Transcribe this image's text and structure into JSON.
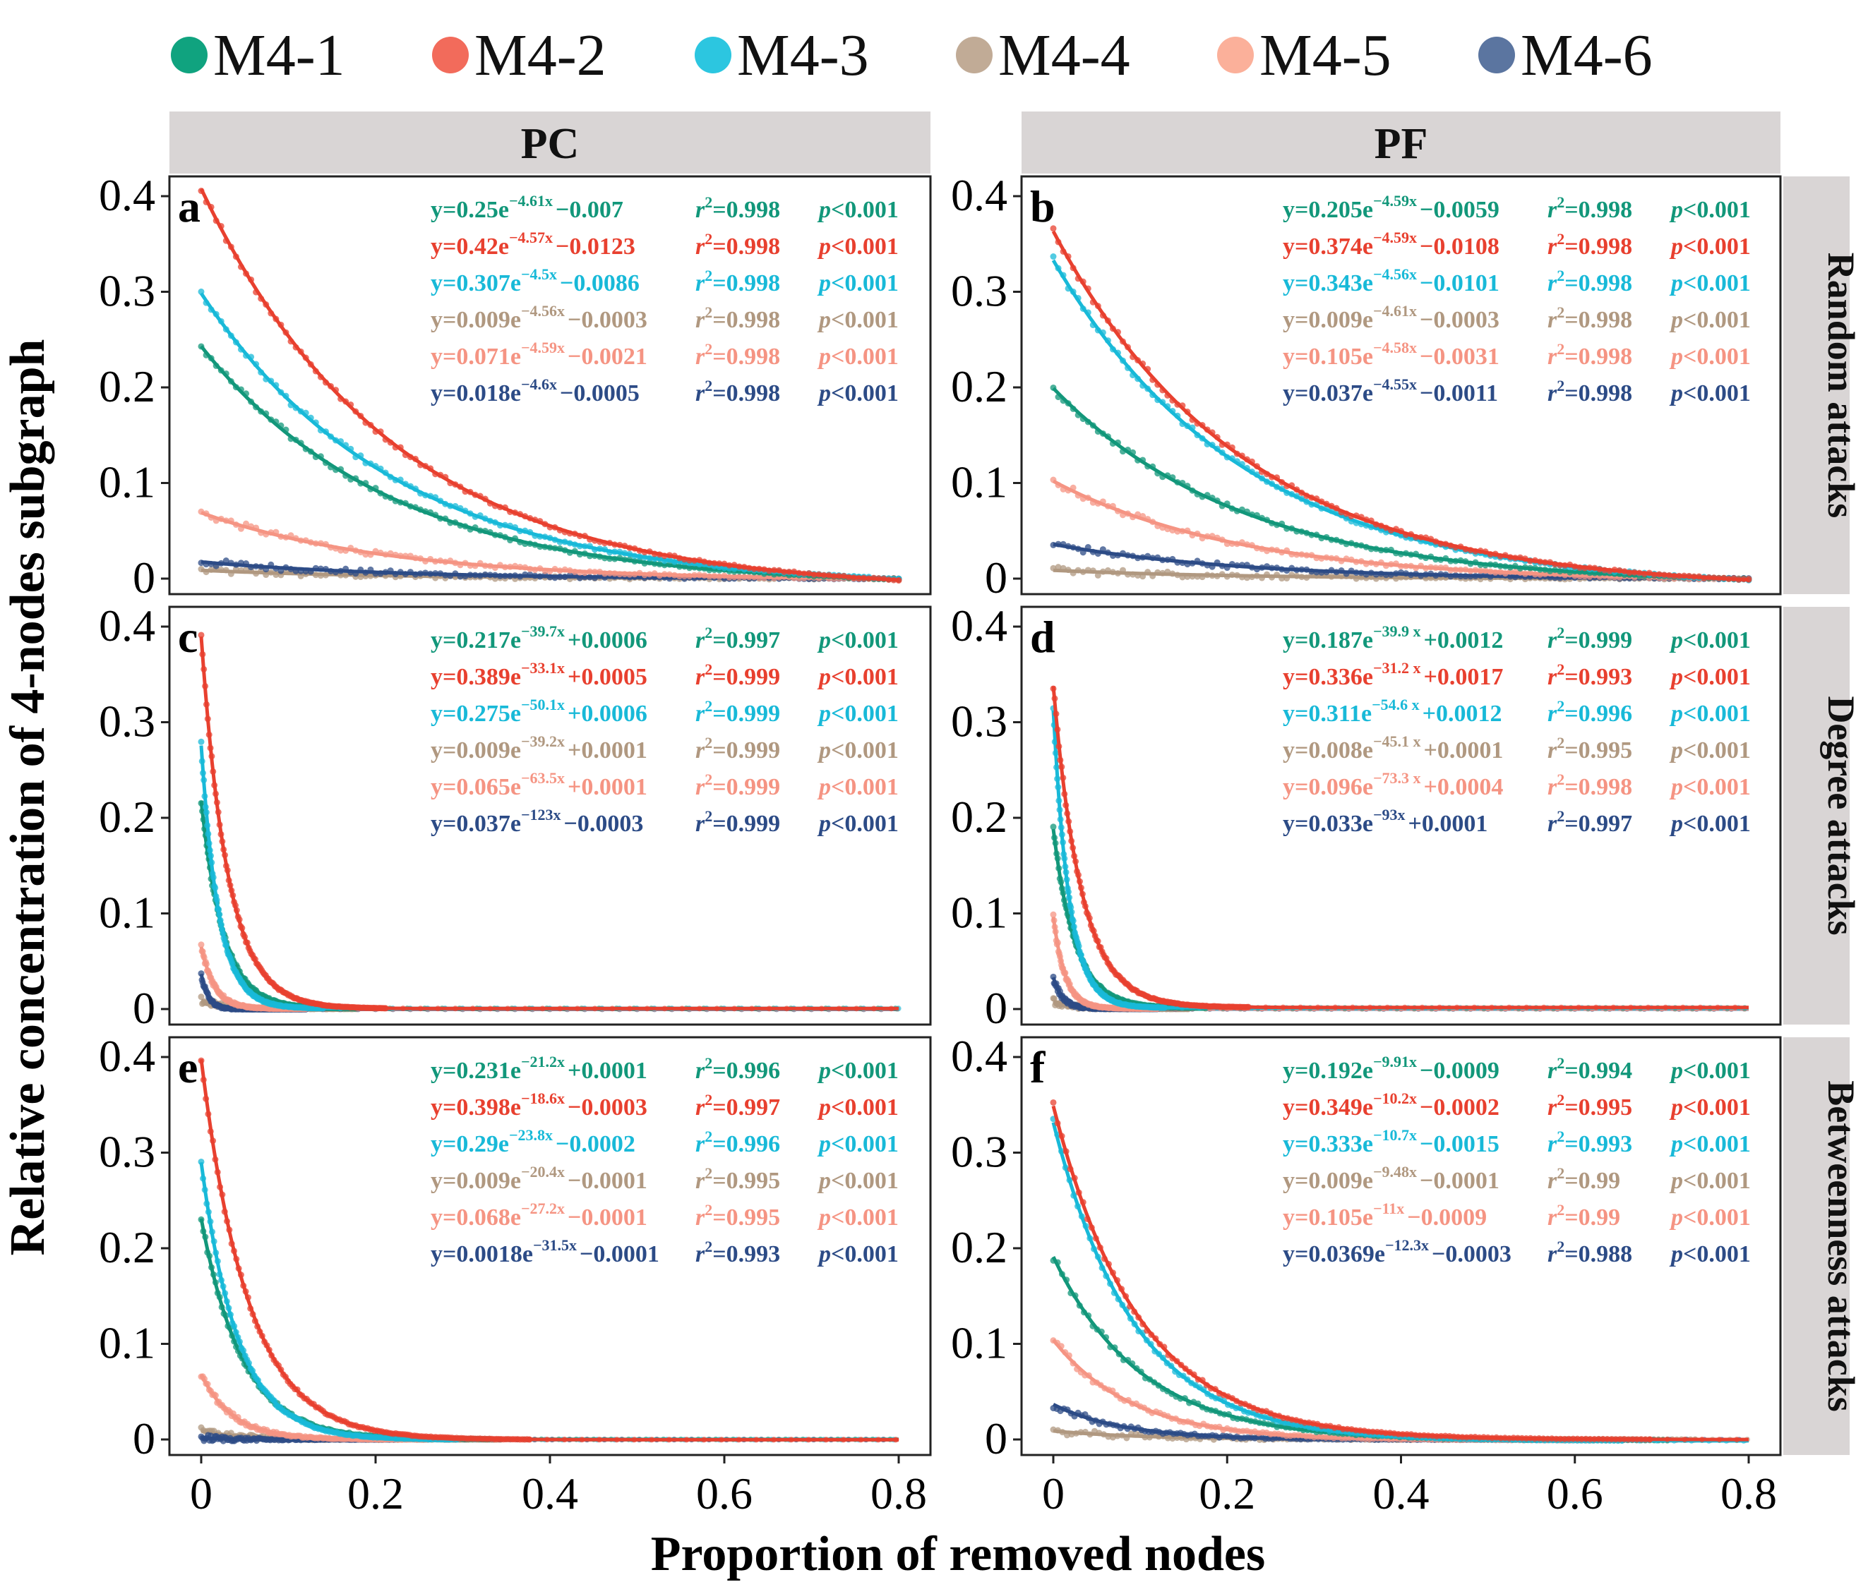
{
  "chart_data": {
    "type": "scatter",
    "ylabel": "Relative concentration of 4-nodes subgraph",
    "xlabel": "Proportion of removed nodes",
    "legend": [
      {
        "name": "M4-1",
        "color": "#10a37f"
      },
      {
        "name": "M4-2",
        "color": "#f26b5b"
      },
      {
        "name": "M4-3",
        "color": "#2cc6e0"
      },
      {
        "name": "M4-4",
        "color": "#c1ab96"
      },
      {
        "name": "M4-5",
        "color": "#fbb09a"
      },
      {
        "name": "M4-6",
        "color": "#5b75a0"
      }
    ],
    "legend_position": "top",
    "series_colors": [
      "#12977a",
      "#e8402f",
      "#18b9d8",
      "#b09880",
      "#f59483",
      "#2c4b86"
    ],
    "column_strips": [
      "PC",
      "PF"
    ],
    "row_strips": [
      "Random attacks",
      "Degree attacks",
      "Betweenness attacks"
    ],
    "xlim": [
      0,
      0.8
    ],
    "ylim": [
      0,
      0.4
    ],
    "x_ticks": [
      "0",
      "0.2",
      "0.4",
      "0.6",
      "0.8"
    ],
    "y_ticks": [
      "0",
      "0.1",
      "0.2",
      "0.3",
      "0.4"
    ],
    "panels": [
      {
        "label": "a",
        "column": "PC",
        "row": "Random attacks",
        "fits": [
          {
            "series": "M4-1",
            "a": 0.25,
            "b": 4.61,
            "c": -0.007,
            "eq_coef": "y=0.25e",
            "eq_exp": "−4.61x",
            "eq_const": "−0.007",
            "r2": "=0.998",
            "p": "<0.001"
          },
          {
            "series": "M4-2",
            "a": 0.42,
            "b": 4.57,
            "c": -0.0123,
            "eq_coef": "y=0.42e",
            "eq_exp": "−4.57x",
            "eq_const": "−0.0123",
            "r2": "=0.998",
            "p": "<0.001"
          },
          {
            "series": "M4-3",
            "a": 0.307,
            "b": 4.5,
            "c": -0.0086,
            "eq_coef": "y=0.307e",
            "eq_exp": "−4.5x",
            "eq_const": "−0.0086",
            "r2": "=0.998",
            "p": "<0.001"
          },
          {
            "series": "M4-4",
            "a": 0.009,
            "b": 4.56,
            "c": -0.0003,
            "eq_coef": "y=0.009e",
            "eq_exp": "−4.56x",
            "eq_const": "−0.0003",
            "r2": "=0.998",
            "p": "<0.001"
          },
          {
            "series": "M4-5",
            "a": 0.071,
            "b": 4.59,
            "c": -0.0021,
            "eq_coef": "y=0.071e",
            "eq_exp": "−4.59x",
            "eq_const": "−0.0021",
            "r2": "=0.998",
            "p": "<0.001"
          },
          {
            "series": "M4-6",
            "a": 0.018,
            "b": 4.6,
            "c": -0.0005,
            "eq_coef": "y=0.018e",
            "eq_exp": "−4.6x",
            "eq_const": "−0.0005",
            "r2": "=0.998",
            "p": "<0.001"
          }
        ]
      },
      {
        "label": "b",
        "column": "PF",
        "row": "Random attacks",
        "fits": [
          {
            "series": "M4-1",
            "a": 0.205,
            "b": 4.59,
            "c": -0.0059,
            "eq_coef": "y=0.205e",
            "eq_exp": "−4.59x",
            "eq_const": "−0.0059",
            "r2": "=0.998",
            "p": "<0.001"
          },
          {
            "series": "M4-2",
            "a": 0.374,
            "b": 4.59,
            "c": -0.0108,
            "eq_coef": "y=0.374e",
            "eq_exp": "−4.59x",
            "eq_const": "−0.0108",
            "r2": "=0.998",
            "p": "<0.001"
          },
          {
            "series": "M4-3",
            "a": 0.343,
            "b": 4.56,
            "c": -0.0101,
            "eq_coef": "y=0.343e",
            "eq_exp": "−4.56x",
            "eq_const": "−0.0101",
            "r2": "=0.998",
            "p": "<0.001"
          },
          {
            "series": "M4-4",
            "a": 0.009,
            "b": 4.61,
            "c": -0.0003,
            "eq_coef": "y=0.009e",
            "eq_exp": "−4.61x",
            "eq_const": "−0.0003",
            "r2": "=0.998",
            "p": "<0.001"
          },
          {
            "series": "M4-5",
            "a": 0.105,
            "b": 4.58,
            "c": -0.0031,
            "eq_coef": "y=0.105e",
            "eq_exp": "−4.58x",
            "eq_const": "−0.0031",
            "r2": "=0.998",
            "p": "<0.001"
          },
          {
            "series": "M4-6",
            "a": 0.037,
            "b": 4.55,
            "c": -0.0011,
            "eq_coef": "y=0.037e",
            "eq_exp": "−4.55x",
            "eq_const": "−0.0011",
            "r2": "=0.998",
            "p": "<0.001"
          }
        ]
      },
      {
        "label": "c",
        "column": "PC",
        "row": "Degree attacks",
        "fits": [
          {
            "series": "M4-1",
            "a": 0.217,
            "b": 39.7,
            "c": 0.0006,
            "eq_coef": "y=0.217e",
            "eq_exp": "−39.7x",
            "eq_const": "+0.0006",
            "r2": "=0.997",
            "p": "<0.001"
          },
          {
            "series": "M4-2",
            "a": 0.389,
            "b": 33.1,
            "c": 0.0005,
            "eq_coef": "y=0.389e",
            "eq_exp": "−33.1x",
            "eq_const": "+0.0005",
            "r2": "=0.999",
            "p": "<0.001"
          },
          {
            "series": "M4-3",
            "a": 0.275,
            "b": 50.1,
            "c": 0.0006,
            "eq_coef": "y=0.275e",
            "eq_exp": "−50.1x",
            "eq_const": "+0.0006",
            "r2": "=0.999",
            "p": "<0.001"
          },
          {
            "series": "M4-4",
            "a": 0.009,
            "b": 39.2,
            "c": 0.0001,
            "eq_coef": "y=0.009e",
            "eq_exp": "−39.2x",
            "eq_const": "+0.0001",
            "r2": "=0.999",
            "p": "<0.001"
          },
          {
            "series": "M4-5",
            "a": 0.065,
            "b": 63.5,
            "c": 0.0001,
            "eq_coef": "y=0.065e",
            "eq_exp": "−63.5x",
            "eq_const": "+0.0001",
            "r2": "=0.999",
            "p": "<0.001"
          },
          {
            "series": "M4-6",
            "a": 0.037,
            "b": 123,
            "c": -0.0003,
            "eq_coef": "y=0.037e",
            "eq_exp": "−123x",
            "eq_const": "−0.0003",
            "r2": "=0.999",
            "p": "<0.001"
          }
        ]
      },
      {
        "label": "d",
        "column": "PF",
        "row": "Degree attacks",
        "fits": [
          {
            "series": "M4-1",
            "a": 0.187,
            "b": 39.9,
            "c": 0.0012,
            "eq_coef": "y=0.187e",
            "eq_exp": "−39.9 x",
            "eq_const": "+0.0012",
            "r2": "=0.999",
            "p": "<0.001"
          },
          {
            "series": "M4-2",
            "a": 0.336,
            "b": 31.2,
            "c": 0.0017,
            "eq_coef": "y=0.336e",
            "eq_exp": "−31.2 x",
            "eq_const": "+0.0017",
            "r2": "=0.993",
            "p": "<0.001"
          },
          {
            "series": "M4-3",
            "a": 0.311,
            "b": 54.6,
            "c": 0.0012,
            "eq_coef": "y=0.311e",
            "eq_exp": "−54.6 x",
            "eq_const": "+0.0012",
            "r2": "=0.996",
            "p": "<0.001"
          },
          {
            "series": "M4-4",
            "a": 0.008,
            "b": 45.1,
            "c": 0.0001,
            "eq_coef": "y=0.008e",
            "eq_exp": "−45.1 x",
            "eq_const": "+0.0001",
            "r2": "=0.995",
            "p": "<0.001"
          },
          {
            "series": "M4-5",
            "a": 0.096,
            "b": 73.3,
            "c": 0.0004,
            "eq_coef": "y=0.096e",
            "eq_exp": "−73.3 x",
            "eq_const": "+0.0004",
            "r2": "=0.998",
            "p": "<0.001"
          },
          {
            "series": "M4-6",
            "a": 0.033,
            "b": 93,
            "c": 0.0001,
            "eq_coef": "y=0.033e",
            "eq_exp": "−93x",
            "eq_const": "+0.0001",
            "r2": "=0.997",
            "p": "<0.001"
          }
        ]
      },
      {
        "label": "e",
        "column": "PC",
        "row": "Betweenness attacks",
        "fits": [
          {
            "series": "M4-1",
            "a": 0.231,
            "b": 21.2,
            "c": 0.0001,
            "eq_coef": "y=0.231e",
            "eq_exp": "−21.2x",
            "eq_const": "+0.0001",
            "r2": "=0.996",
            "p": "<0.001"
          },
          {
            "series": "M4-2",
            "a": 0.398,
            "b": 18.6,
            "c": -0.0003,
            "eq_coef": "y=0.398e",
            "eq_exp": "−18.6x",
            "eq_const": "−0.0003",
            "r2": "=0.997",
            "p": "<0.001"
          },
          {
            "series": "M4-3",
            "a": 0.29,
            "b": 23.8,
            "c": -0.0002,
            "eq_coef": "y=0.29e",
            "eq_exp": "−23.8x",
            "eq_const": "−0.0002",
            "r2": "=0.996",
            "p": "<0.001"
          },
          {
            "series": "M4-4",
            "a": 0.009,
            "b": 20.4,
            "c": -0.0001,
            "eq_coef": "y=0.009e",
            "eq_exp": "−20.4x",
            "eq_const": "−0.0001",
            "r2": "=0.995",
            "p": "<0.001"
          },
          {
            "series": "M4-5",
            "a": 0.068,
            "b": 27.2,
            "c": -0.0001,
            "eq_coef": "y=0.068e",
            "eq_exp": "−27.2x",
            "eq_const": "−0.0001",
            "r2": "=0.995",
            "p": "<0.001"
          },
          {
            "series": "M4-6",
            "a": 0.0018,
            "b": 31.5,
            "c": -0.0001,
            "eq_coef": "y=0.0018e",
            "eq_exp": "−31.5x",
            "eq_const": "−0.0001",
            "r2": "=0.993",
            "p": "<0.001"
          }
        ]
      },
      {
        "label": "f",
        "column": "PF",
        "row": "Betweenness attacks",
        "fits": [
          {
            "series": "M4-1",
            "a": 0.192,
            "b": 9.91,
            "c": -0.0009,
            "eq_coef": "y=0.192e",
            "eq_exp": "−9.91x",
            "eq_const": "−0.0009",
            "r2": "=0.994",
            "p": "<0.001"
          },
          {
            "series": "M4-2",
            "a": 0.349,
            "b": 10.2,
            "c": -0.0002,
            "eq_coef": "y=0.349e",
            "eq_exp": "−10.2x",
            "eq_const": "−0.0002",
            "r2": "=0.995",
            "p": "<0.001"
          },
          {
            "series": "M4-3",
            "a": 0.333,
            "b": 10.7,
            "c": -0.0015,
            "eq_coef": "y=0.333e",
            "eq_exp": "−10.7x",
            "eq_const": "−0.0015",
            "r2": "=0.993",
            "p": "<0.001"
          },
          {
            "series": "M4-4",
            "a": 0.009,
            "b": 9.48,
            "c": -0.0001,
            "eq_coef": "y=0.009e",
            "eq_exp": "−9.48x",
            "eq_const": "−0.0001",
            "r2": "=0.99",
            "p": "<0.001"
          },
          {
            "series": "M4-5",
            "a": 0.105,
            "b": 11,
            "c": -0.0009,
            "eq_coef": "y=0.105e",
            "eq_exp": "−11x",
            "eq_const": "−0.0009",
            "r2": "=0.99",
            "p": "<0.001"
          },
          {
            "series": "M4-6",
            "a": 0.0369,
            "b": 12.3,
            "c": -0.0003,
            "eq_coef": "y=0.0369e",
            "eq_exp": "−12.3x",
            "eq_const": "−0.0003",
            "r2": "=0.988",
            "p": "<0.001"
          }
        ]
      }
    ]
  }
}
